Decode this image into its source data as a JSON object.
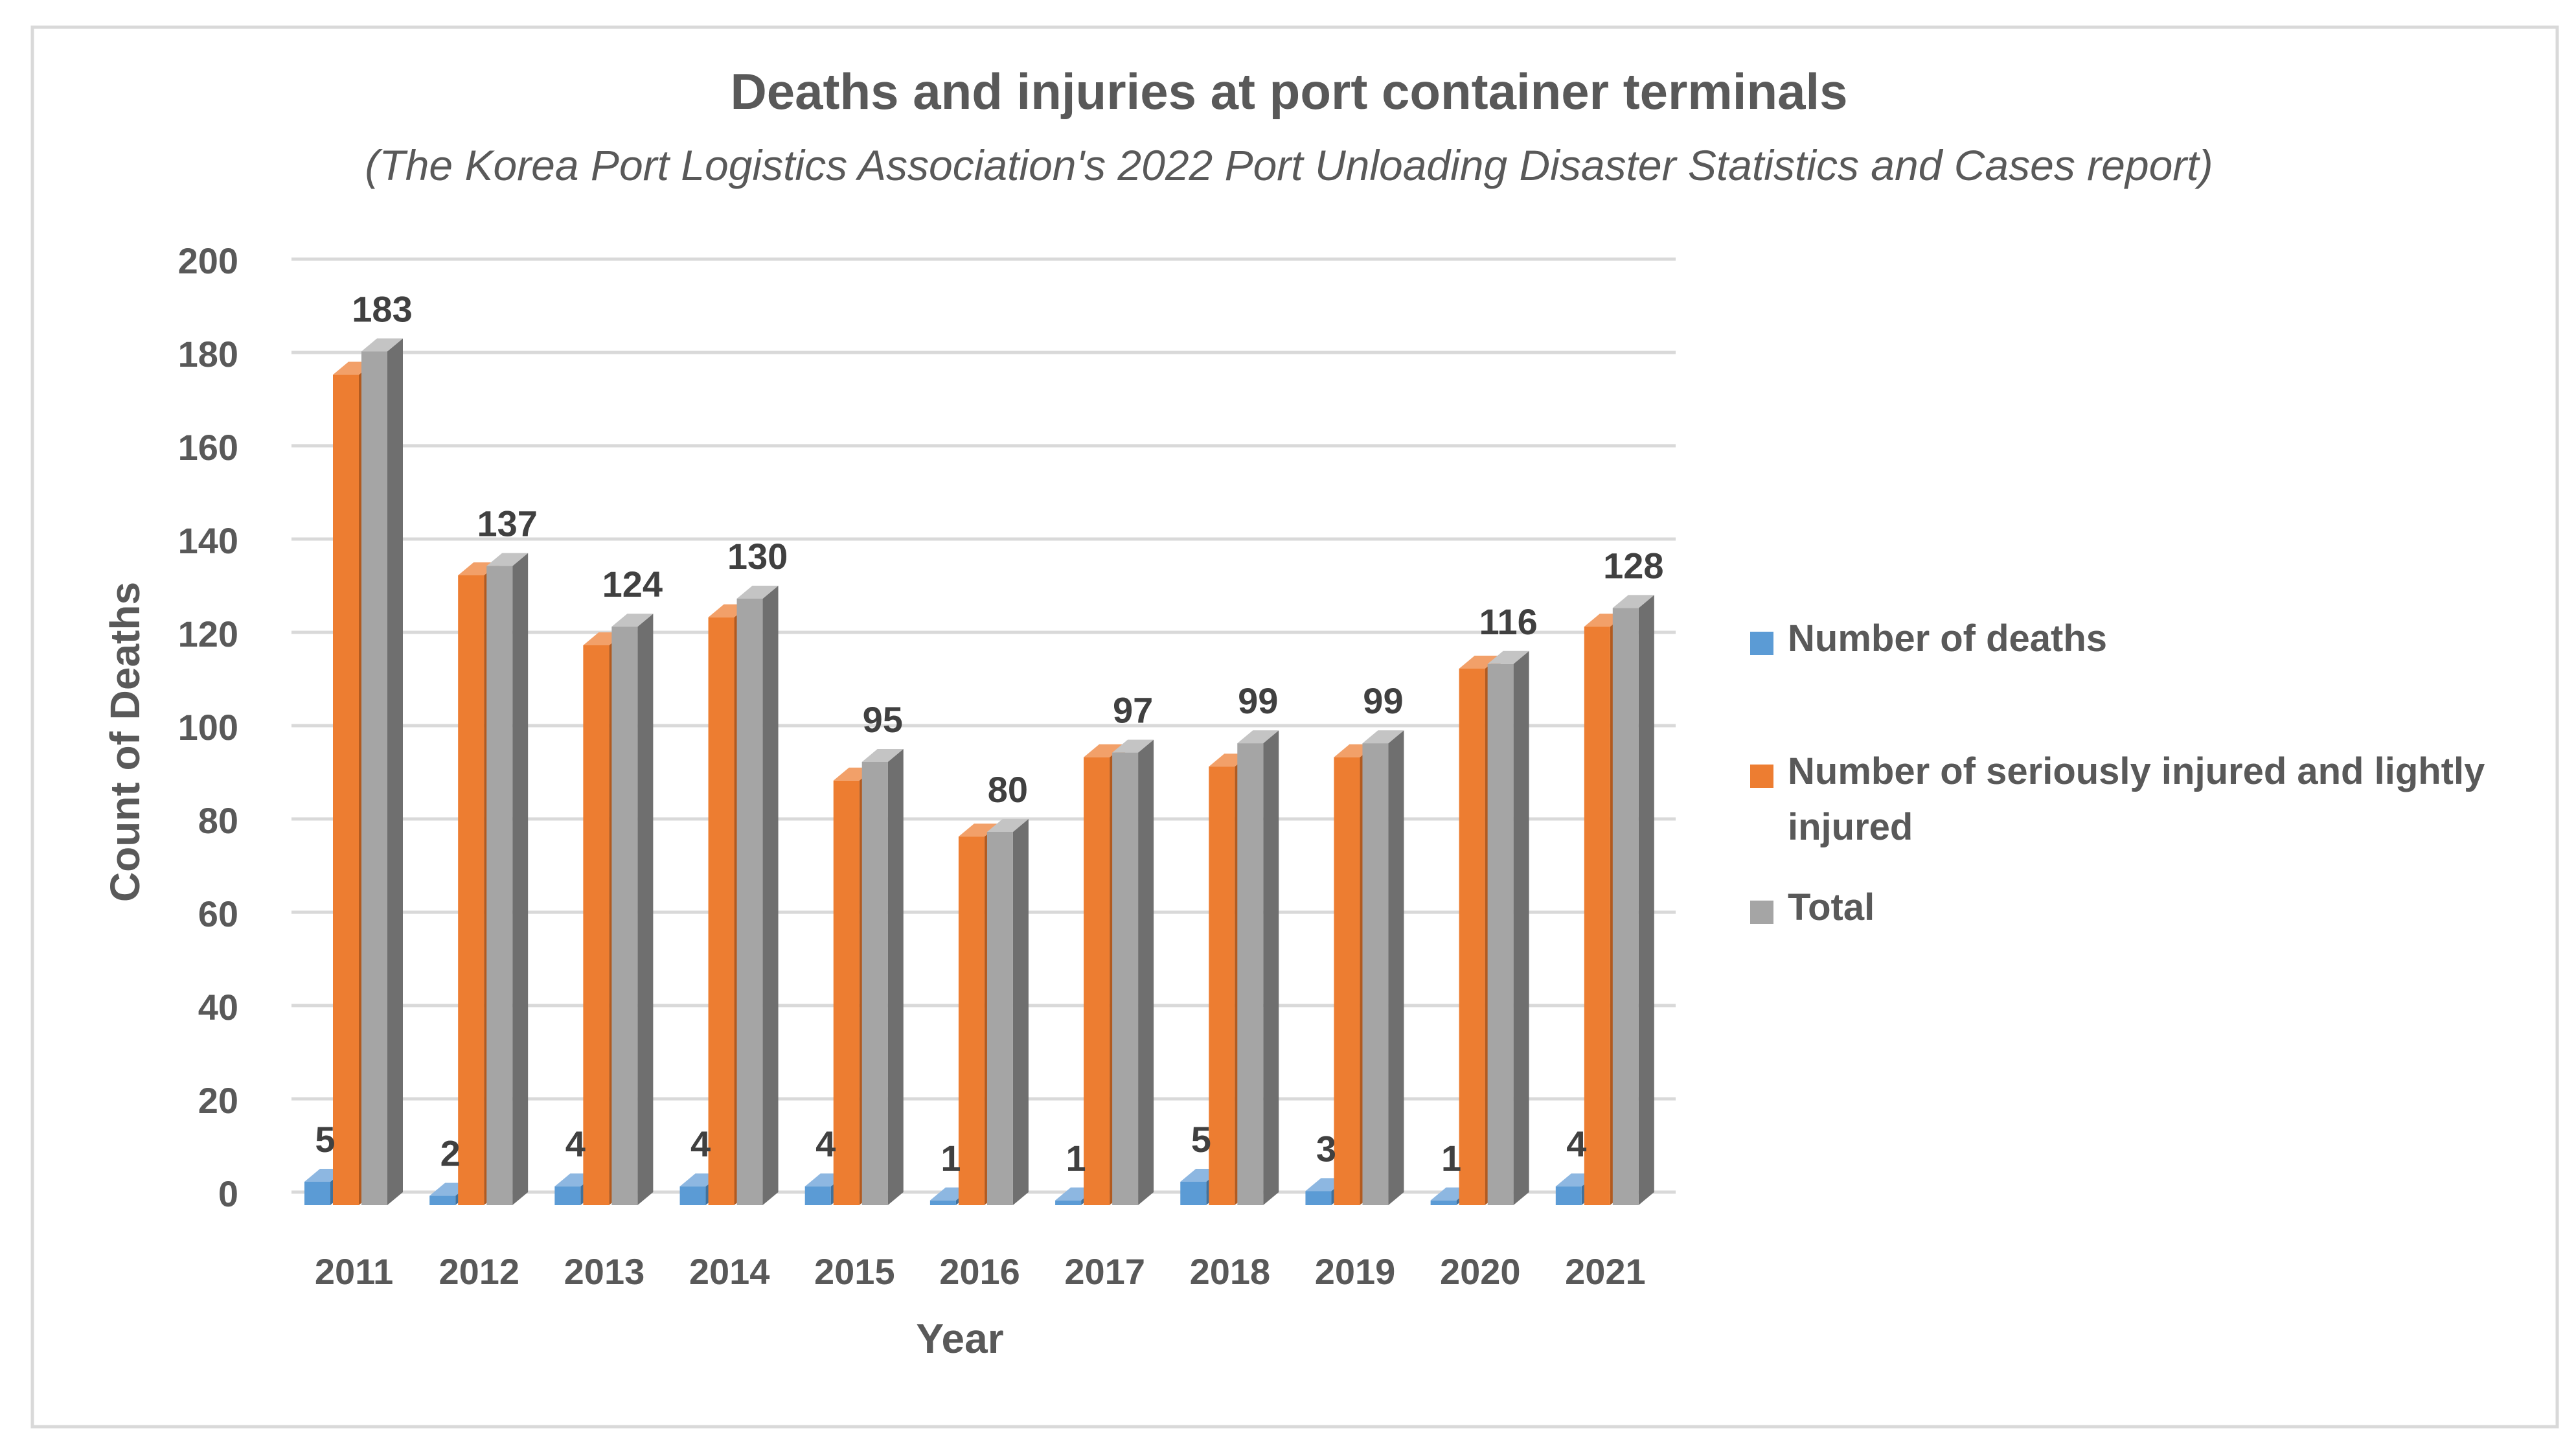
{
  "chart_data": {
    "type": "bar",
    "title": "Deaths and injuries at port container terminals",
    "subtitle": "(The Korea Port Logistics Association's 2022 Port Unloading Disaster Statistics and Cases report)",
    "xlabel": "Year",
    "ylabel": "Count of Deaths",
    "ylim": [
      0,
      200
    ],
    "yticks": [
      "0",
      "20",
      "40",
      "60",
      "80",
      "100",
      "120",
      "140",
      "160",
      "180",
      "200"
    ],
    "categories": [
      "2011",
      "2012",
      "2013",
      "2014",
      "2015",
      "2016",
      "2017",
      "2018",
      "2019",
      "2020",
      "2021"
    ],
    "series": [
      {
        "name": "Number of deaths",
        "values": [
          5,
          2,
          4,
          4,
          4,
          1,
          1,
          5,
          3,
          1,
          4
        ],
        "labels": [
          "5",
          "2",
          "4",
          "4",
          "4",
          "1",
          "1",
          "5",
          "3",
          "1",
          "4"
        ],
        "color": "#5b9bd5",
        "shade": "#41719c",
        "top": "#8db7e1"
      },
      {
        "name": "Number of seriously injured and lightly injured",
        "legend_lines": [
          "Number of seriously injured and lightly",
          "injured"
        ],
        "values": [
          178,
          135,
          120,
          126,
          91,
          79,
          96,
          94,
          96,
          115,
          124
        ],
        "color": "#ed7d31",
        "shade": "#b25a1f",
        "top": "#f2a069"
      },
      {
        "name": "Total",
        "values": [
          183,
          137,
          124,
          130,
          95,
          80,
          97,
          99,
          99,
          116,
          128
        ],
        "labels": [
          "183",
          "137",
          "124",
          "130",
          "95",
          "80",
          "97",
          "99",
          "99",
          "116",
          "128"
        ],
        "color": "#a5a5a5",
        "shade": "#6f6f6f",
        "top": "#c4c4c4"
      }
    ],
    "legend_position": "right",
    "grid": true
  },
  "colors": {
    "gridline": "#d9d9d9",
    "text": "#595959",
    "border": "#d9d9d9"
  }
}
